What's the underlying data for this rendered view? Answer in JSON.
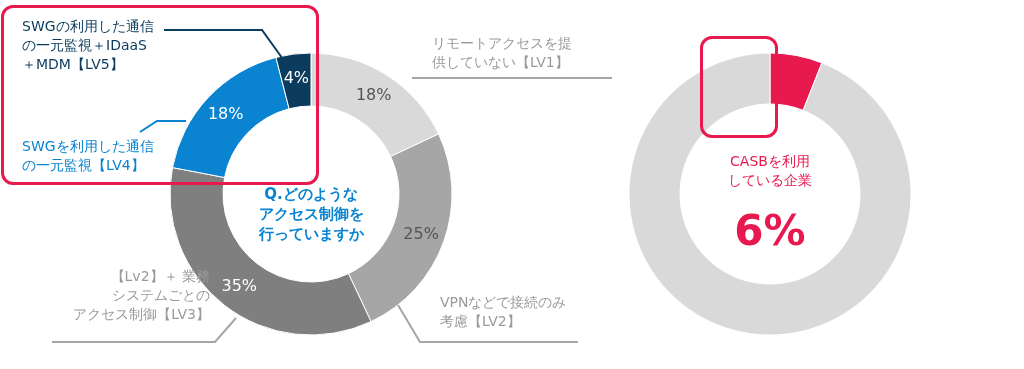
{
  "chart_data": [
    {
      "type": "donut",
      "categories": [
        "リモートアクセスを提供していない【LV1】",
        "VPNなどで接続のみ考慮【LV2】",
        "【Lv2】＋ 業務システムごとのアクセス制御【LV3】",
        "SWGを利用した通信の一元監視【LV4】",
        "SWGの利用した通信の一元監視＋IDaaS＋MDM【LV5】"
      ],
      "values": [
        18,
        25,
        35,
        18,
        4
      ],
      "colors": [
        "#d9d9d9",
        "#a6a6a6",
        "#7f7f7f",
        "#0a84d0",
        "#0b3c5d"
      ],
      "value_labels": [
        "18%",
        "25%",
        "35%",
        "18%",
        "4%"
      ],
      "annotations": [
        "Q.どのようなアクセス制御を行っていますか"
      ]
    },
    {
      "type": "donut",
      "categories": [
        "CASBを利用している企業",
        null
      ],
      "values": [
        6,
        94
      ],
      "colors": [
        "#e8194f",
        "#d9d9d9"
      ],
      "value_labels": [
        "6%",
        null
      ]
    }
  ]
}
